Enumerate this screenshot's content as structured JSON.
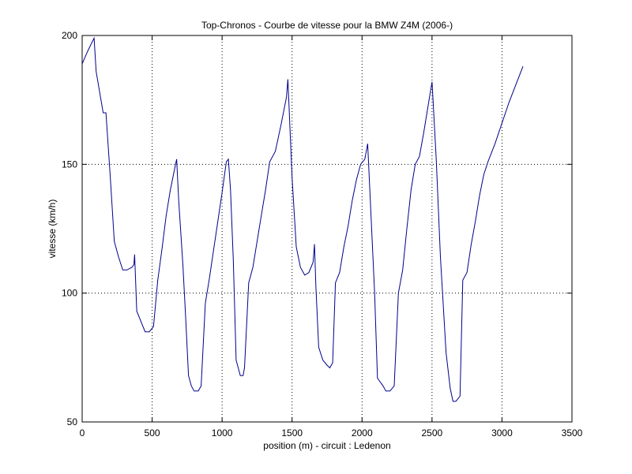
{
  "chart_data": {
    "type": "line",
    "title": "Top-Chronos - Courbe de vitesse pour la BMW Z4M (2006-)",
    "xlabel": "position (m) - circuit : Ledenon",
    "ylabel": "vitesse (km/h)",
    "xlim": [
      0,
      3500
    ],
    "ylim": [
      50,
      200
    ],
    "xticks": [
      0,
      500,
      1000,
      1500,
      2000,
      2500,
      3000,
      3500
    ],
    "yticks": [
      50,
      100,
      150,
      200
    ],
    "grid": "dotted",
    "line_color": "#00008b",
    "series": [
      {
        "x": [
          0,
          40,
          85,
          100,
          150,
          170,
          200,
          230,
          260,
          290,
          320,
          355,
          370,
          375,
          390,
          420,
          450,
          480,
          510,
          540,
          570,
          600,
          630,
          660,
          675,
          690,
          720,
          740,
          760,
          780,
          800,
          830,
          850,
          880,
          910,
          940,
          970,
          1000,
          1030,
          1045,
          1060,
          1080,
          1100,
          1130,
          1150,
          1160,
          1190,
          1220,
          1250,
          1280,
          1310,
          1340,
          1380,
          1420,
          1460,
          1470,
          1500,
          1530,
          1560,
          1590,
          1620,
          1650,
          1660,
          1670,
          1690,
          1720,
          1750,
          1770,
          1790,
          1810,
          1840,
          1870,
          1900,
          1930,
          1960,
          1990,
          2020,
          2040,
          2060,
          2090,
          2110,
          2150,
          2170,
          2200,
          2230,
          2260,
          2290,
          2320,
          2350,
          2380,
          2410,
          2440,
          2470,
          2500,
          2530,
          2560,
          2600,
          2630,
          2650,
          2670,
          2700,
          2720,
          2750,
          2780,
          2810,
          2840,
          2870,
          2900,
          2950,
          3000,
          3050,
          3100,
          3150
        ],
        "y": [
          189,
          194,
          199,
          186,
          170,
          170,
          146,
          120,
          114,
          109,
          109,
          110,
          111,
          115,
          93,
          89,
          85,
          85,
          87,
          105,
          117,
          130,
          140,
          148,
          152,
          136,
          111,
          90,
          68,
          64,
          62,
          62,
          64,
          96,
          106,
          117,
          128,
          139,
          151,
          152,
          140,
          113,
          74,
          68,
          68,
          71,
          104,
          110,
          120,
          130,
          140,
          151,
          155,
          165,
          176,
          183,
          145,
          118,
          110,
          107,
          108,
          112,
          119,
          103,
          79,
          74,
          72,
          71,
          73,
          104,
          108,
          118,
          126,
          136,
          144,
          150,
          152,
          158,
          135,
          100,
          67,
          64,
          62,
          62,
          64,
          100,
          109,
          125,
          140,
          150,
          153,
          162,
          172,
          182,
          152,
          114,
          77,
          63,
          58,
          58,
          60,
          105,
          108,
          119,
          128,
          138,
          146,
          151,
          158,
          166,
          174,
          181,
          188
        ]
      }
    ]
  }
}
